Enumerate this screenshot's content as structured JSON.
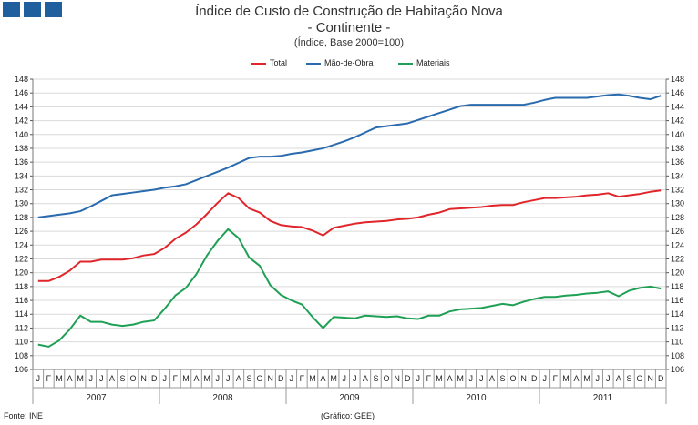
{
  "header": {
    "title_line1": "Índice de Custo de Construção de Habitação Nova",
    "title_line2": "- Continente -",
    "subtitle": "(Índice, Base 2000=100)"
  },
  "footer": {
    "source": "Fonte: INE",
    "credit": "(Gráfico: GEE)"
  },
  "chart_data": {
    "type": "line",
    "title": "Índice de Custo de Construção de Habitação Nova - Continente -",
    "subtitle": "(Índice, Base 2000=100)",
    "ylim": [
      106,
      148
    ],
    "ytick_step": 2,
    "month_labels": [
      "J",
      "F",
      "M",
      "A",
      "M",
      "J",
      "J",
      "A",
      "S",
      "O",
      "N",
      "D"
    ],
    "years": [
      "2007",
      "2008",
      "2009",
      "2010",
      "2011"
    ],
    "legend_position": "top-center",
    "series": [
      {
        "name": "Total",
        "color": "#e0262b",
        "values": [
          118.8,
          118.8,
          119.4,
          120.3,
          121.6,
          121.6,
          121.9,
          121.9,
          121.9,
          122.1,
          122.5,
          122.7,
          123.6,
          124.9,
          125.8,
          127.0,
          128.5,
          130.1,
          131.5,
          130.8,
          129.3,
          128.7,
          127.5,
          126.9,
          126.7,
          126.6,
          126.1,
          125.4,
          126.5,
          126.8,
          127.1,
          127.3,
          127.4,
          127.5,
          127.7,
          127.8,
          128.0,
          128.4,
          128.7,
          129.2,
          129.3,
          129.4,
          129.5,
          129.7,
          129.8,
          129.8,
          130.2,
          130.5,
          130.8,
          130.8,
          130.9,
          131.0,
          131.2,
          131.3,
          131.5,
          131.0,
          131.2,
          131.4,
          131.7,
          131.9
        ]
      },
      {
        "name": "Mão-de-Obra",
        "color": "#2a6aae",
        "values": [
          128.0,
          128.2,
          128.4,
          128.6,
          128.9,
          129.6,
          130.4,
          131.2,
          131.4,
          131.6,
          131.8,
          132.0,
          132.3,
          132.5,
          132.8,
          133.4,
          134.0,
          134.6,
          135.2,
          135.9,
          136.6,
          136.8,
          136.8,
          136.9,
          137.2,
          137.4,
          137.7,
          138.0,
          138.5,
          139.0,
          139.6,
          140.3,
          141.0,
          141.2,
          141.4,
          141.6,
          142.1,
          142.6,
          143.1,
          143.6,
          144.1,
          144.3,
          144.3,
          144.3,
          144.3,
          144.3,
          144.3,
          144.6,
          145.0,
          145.3,
          145.3,
          145.3,
          145.3,
          145.5,
          145.7,
          145.8,
          145.6,
          145.3,
          145.1,
          145.6
        ]
      },
      {
        "name": "Materiais",
        "color": "#1fa055",
        "values": [
          109.6,
          109.3,
          110.2,
          111.8,
          113.8,
          112.9,
          112.9,
          112.5,
          112.3,
          112.5,
          112.9,
          113.1,
          114.8,
          116.7,
          117.8,
          119.8,
          122.5,
          124.6,
          126.3,
          125.0,
          122.2,
          121.0,
          118.2,
          116.8,
          116.0,
          115.4,
          113.6,
          112.0,
          113.6,
          113.5,
          113.4,
          113.8,
          113.7,
          113.6,
          113.7,
          113.4,
          113.3,
          113.8,
          113.8,
          114.4,
          114.7,
          114.8,
          114.9,
          115.2,
          115.5,
          115.3,
          115.8,
          116.2,
          116.5,
          116.5,
          116.7,
          116.8,
          117.0,
          117.1,
          117.3,
          116.6,
          117.4,
          117.8,
          118.0,
          117.7
        ]
      }
    ]
  }
}
